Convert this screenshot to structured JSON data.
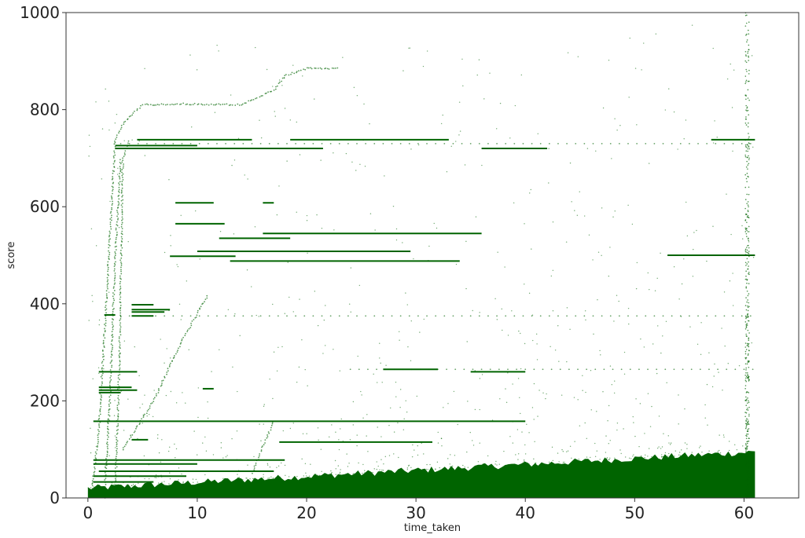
{
  "chart_data": {
    "type": "scatter",
    "title": "",
    "xlabel": "time_taken",
    "ylabel": "score",
    "xlim": [
      -2,
      65
    ],
    "ylim": [
      0,
      1000
    ],
    "xticks": [
      0,
      10,
      20,
      30,
      40,
      50,
      60
    ],
    "yticks": [
      0,
      200,
      400,
      600,
      800,
      1000
    ],
    "grid": false,
    "legend": "none",
    "point_color": "#006400",
    "dense_band": {
      "x_start": 0,
      "x_end": 61,
      "y_low": 0,
      "y_high_start": 20,
      "y_high_end": 95
    },
    "horizontal_runs": [
      {
        "x_start": 4.5,
        "x_end": 15,
        "y": 738
      },
      {
        "x_start": 18.5,
        "x_end": 33,
        "y": 738
      },
      {
        "x_start": 57,
        "x_end": 61,
        "y": 738
      },
      {
        "x_start": 2.5,
        "x_end": 10,
        "y": 726
      },
      {
        "x_start": 2.5,
        "x_end": 21.5,
        "y": 720
      },
      {
        "x_start": 36,
        "x_end": 42,
        "y": 720
      },
      {
        "x_start": 8,
        "x_end": 11.5,
        "y": 608
      },
      {
        "x_start": 16,
        "x_end": 17,
        "y": 608
      },
      {
        "x_start": 8,
        "x_end": 12.5,
        "y": 565
      },
      {
        "x_start": 16,
        "x_end": 36,
        "y": 545
      },
      {
        "x_start": 12,
        "x_end": 18.5,
        "y": 535
      },
      {
        "x_start": 10,
        "x_end": 29.5,
        "y": 508
      },
      {
        "x_start": 7.5,
        "x_end": 13.5,
        "y": 498
      },
      {
        "x_start": 53,
        "x_end": 61,
        "y": 500
      },
      {
        "x_start": 13,
        "x_end": 34,
        "y": 488
      },
      {
        "x_start": 4,
        "x_end": 6,
        "y": 398
      },
      {
        "x_start": 4,
        "x_end": 7.5,
        "y": 388
      },
      {
        "x_start": 4,
        "x_end": 7,
        "y": 383
      },
      {
        "x_start": 1.5,
        "x_end": 2.5,
        "y": 377
      },
      {
        "x_start": 4,
        "x_end": 6,
        "y": 375
      },
      {
        "x_start": 27,
        "x_end": 32,
        "y": 265
      },
      {
        "x_start": 35,
        "x_end": 40,
        "y": 260
      },
      {
        "x_start": 1,
        "x_end": 4.5,
        "y": 260
      },
      {
        "x_start": 1,
        "x_end": 4,
        "y": 228
      },
      {
        "x_start": 1,
        "x_end": 4.5,
        "y": 222
      },
      {
        "x_start": 1,
        "x_end": 3,
        "y": 217
      },
      {
        "x_start": 10.5,
        "x_end": 11.5,
        "y": 225
      },
      {
        "x_start": 0.5,
        "x_end": 40,
        "y": 158
      },
      {
        "x_start": 17.5,
        "x_end": 31.5,
        "y": 115
      },
      {
        "x_start": 4,
        "x_end": 5.5,
        "y": 120
      },
      {
        "x_start": 0.5,
        "x_end": 18,
        "y": 78
      },
      {
        "x_start": 0.5,
        "x_end": 10,
        "y": 70
      },
      {
        "x_start": 1,
        "x_end": 17,
        "y": 55
      },
      {
        "x_start": 0.5,
        "x_end": 9,
        "y": 45
      },
      {
        "x_start": 0.5,
        "x_end": 6,
        "y": 33
      }
    ],
    "sparse_rows": [
      {
        "x_start": 3,
        "x_end": 61,
        "y": 375
      },
      {
        "x_start": 3,
        "x_end": 61,
        "y": 730
      },
      {
        "x_start": 24,
        "x_end": 61,
        "y": 265
      }
    ],
    "sparse_curves": [
      {
        "points": [
          [
            0.3,
            0
          ],
          [
            1,
            140
          ],
          [
            1.8,
            450
          ],
          [
            2.5,
            740
          ],
          [
            3.2,
            770
          ],
          [
            4,
            790
          ],
          [
            5,
            810
          ],
          [
            8,
            812
          ],
          [
            14,
            810
          ],
          [
            17,
            840
          ],
          [
            18,
            870
          ],
          [
            20,
            885
          ],
          [
            23,
            885
          ]
        ]
      },
      {
        "points": [
          [
            2.5,
            0
          ],
          [
            2.9,
            300
          ],
          [
            3.2,
            700
          ],
          [
            3.8,
            740
          ]
        ]
      },
      {
        "points": [
          [
            1.5,
            0
          ],
          [
            2,
            200
          ],
          [
            2.5,
            500
          ],
          [
            3,
            700
          ]
        ]
      },
      {
        "points": [
          [
            3.2,
            100
          ],
          [
            6,
            200
          ],
          [
            8.5,
            320
          ],
          [
            11,
            420
          ]
        ]
      },
      {
        "points": [
          [
            15,
            50
          ],
          [
            17,
            160
          ]
        ]
      }
    ],
    "vertical_band": {
      "x": 60.3,
      "y_low": 0,
      "y_high": 1000
    }
  }
}
